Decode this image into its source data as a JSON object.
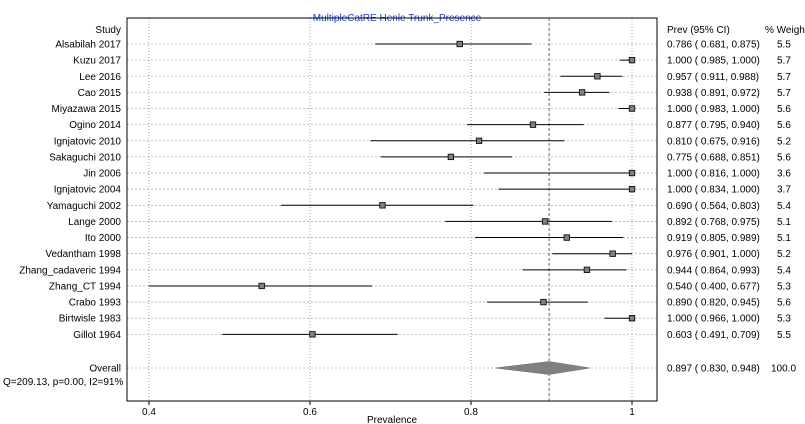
{
  "chart_data": {
    "type": "forest",
    "title": "MultipleCatRE Henle Trunk_Presence",
    "xlabel": "Prevalence",
    "xlim": [
      0.4,
      1.0
    ],
    "xticks": [
      "0.4",
      "0.6",
      "0.8",
      "1"
    ],
    "xtick_values": [
      0.4,
      0.6,
      0.8,
      1.0
    ],
    "grid": true,
    "colors": {
      "title": "#1f3fd6",
      "diamond": "#808080",
      "square": "#808080",
      "line": "#000000"
    },
    "headers": {
      "study": "Study",
      "prev": "Prev (95% CI)",
      "weight": "% Weight"
    },
    "studies": [
      {
        "name": "Alsabilah 2017",
        "prev": 0.786,
        "low": 0.681,
        "high": 0.875,
        "prev_text": "0.786",
        "low_text": "0.681",
        "high_text": "0.875",
        "weight": "5.5"
      },
      {
        "name": "Kuzu 2017",
        "prev": 1.0,
        "low": 0.985,
        "high": 1.0,
        "prev_text": "1.000",
        "low_text": "0.985",
        "high_text": "1.000",
        "weight": "5.7"
      },
      {
        "name": "Lee 2016",
        "prev": 0.957,
        "low": 0.911,
        "high": 0.988,
        "prev_text": "0.957",
        "low_text": "0.911",
        "high_text": "0.988",
        "weight": "5.7"
      },
      {
        "name": "Cao 2015",
        "prev": 0.938,
        "low": 0.891,
        "high": 0.972,
        "prev_text": "0.938",
        "low_text": "0.891",
        "high_text": "0.972",
        "weight": "5.7"
      },
      {
        "name": "Miyazawa 2015",
        "prev": 1.0,
        "low": 0.983,
        "high": 1.0,
        "prev_text": "1.000",
        "low_text": "0.983",
        "high_text": "1.000",
        "weight": "5.6"
      },
      {
        "name": "Ogino 2014",
        "prev": 0.877,
        "low": 0.795,
        "high": 0.94,
        "prev_text": "0.877",
        "low_text": "0.795",
        "high_text": "0.940",
        "weight": "5.6"
      },
      {
        "name": "Ignjatovic 2010",
        "prev": 0.81,
        "low": 0.675,
        "high": 0.916,
        "prev_text": "0.810",
        "low_text": "0.675",
        "high_text": "0.916",
        "weight": "5.2"
      },
      {
        "name": "Sakaguchi 2010",
        "prev": 0.775,
        "low": 0.688,
        "high": 0.851,
        "prev_text": "0.775",
        "low_text": "0.688",
        "high_text": "0.851",
        "weight": "5.6"
      },
      {
        "name": "Jin 2006",
        "prev": 1.0,
        "low": 0.816,
        "high": 1.0,
        "prev_text": "1.000",
        "low_text": "0.816",
        "high_text": "1.000",
        "weight": "3.6"
      },
      {
        "name": "Ignjatovic 2004",
        "prev": 1.0,
        "low": 0.834,
        "high": 1.0,
        "prev_text": "1.000",
        "low_text": "0.834",
        "high_text": "1.000",
        "weight": "3.7"
      },
      {
        "name": "Yamaguchi 2002",
        "prev": 0.69,
        "low": 0.564,
        "high": 0.803,
        "prev_text": "0.690",
        "low_text": "0.564",
        "high_text": "0.803",
        "weight": "5.4"
      },
      {
        "name": "Lange 2000",
        "prev": 0.892,
        "low": 0.768,
        "high": 0.975,
        "prev_text": "0.892",
        "low_text": "0.768",
        "high_text": "0.975",
        "weight": "5.1"
      },
      {
        "name": "Ito 2000",
        "prev": 0.919,
        "low": 0.805,
        "high": 0.989,
        "prev_text": "0.919",
        "low_text": "0.805",
        "high_text": "0.989",
        "weight": "5.1"
      },
      {
        "name": "Vedantham 1998",
        "prev": 0.976,
        "low": 0.901,
        "high": 1.0,
        "prev_text": "0.976",
        "low_text": "0.901",
        "high_text": "1.000",
        "weight": "5.2"
      },
      {
        "name": "Zhang_cadaveric 1994",
        "prev": 0.944,
        "low": 0.864,
        "high": 0.993,
        "prev_text": "0.944",
        "low_text": "0.864",
        "high_text": "0.993",
        "weight": "5.4"
      },
      {
        "name": "Zhang_CT 1994",
        "prev": 0.54,
        "low": 0.4,
        "high": 0.677,
        "prev_text": "0.540",
        "low_text": "0.400",
        "high_text": "0.677",
        "weight": "5.3"
      },
      {
        "name": "Crabo 1993",
        "prev": 0.89,
        "low": 0.82,
        "high": 0.945,
        "prev_text": "0.890",
        "low_text": "0.820",
        "high_text": "0.945",
        "weight": "5.6"
      },
      {
        "name": "Birtwisle 1983",
        "prev": 1.0,
        "low": 0.966,
        "high": 1.0,
        "prev_text": "1.000",
        "low_text": "0.966",
        "high_text": "1.000",
        "weight": "5.3"
      },
      {
        "name": "Gillot 1964",
        "prev": 0.603,
        "low": 0.491,
        "high": 0.709,
        "prev_text": "0.603",
        "low_text": "0.491",
        "high_text": "0.709",
        "weight": "5.5"
      }
    ],
    "overall": {
      "name": "Overall",
      "prev": 0.897,
      "low": 0.83,
      "high": 0.948,
      "prev_text": "0.897",
      "low_text": "0.830",
      "high_text": "0.948",
      "weight": "100.0"
    },
    "heterogeneity": "Q=209.13, p=0.00, I2=91%"
  }
}
